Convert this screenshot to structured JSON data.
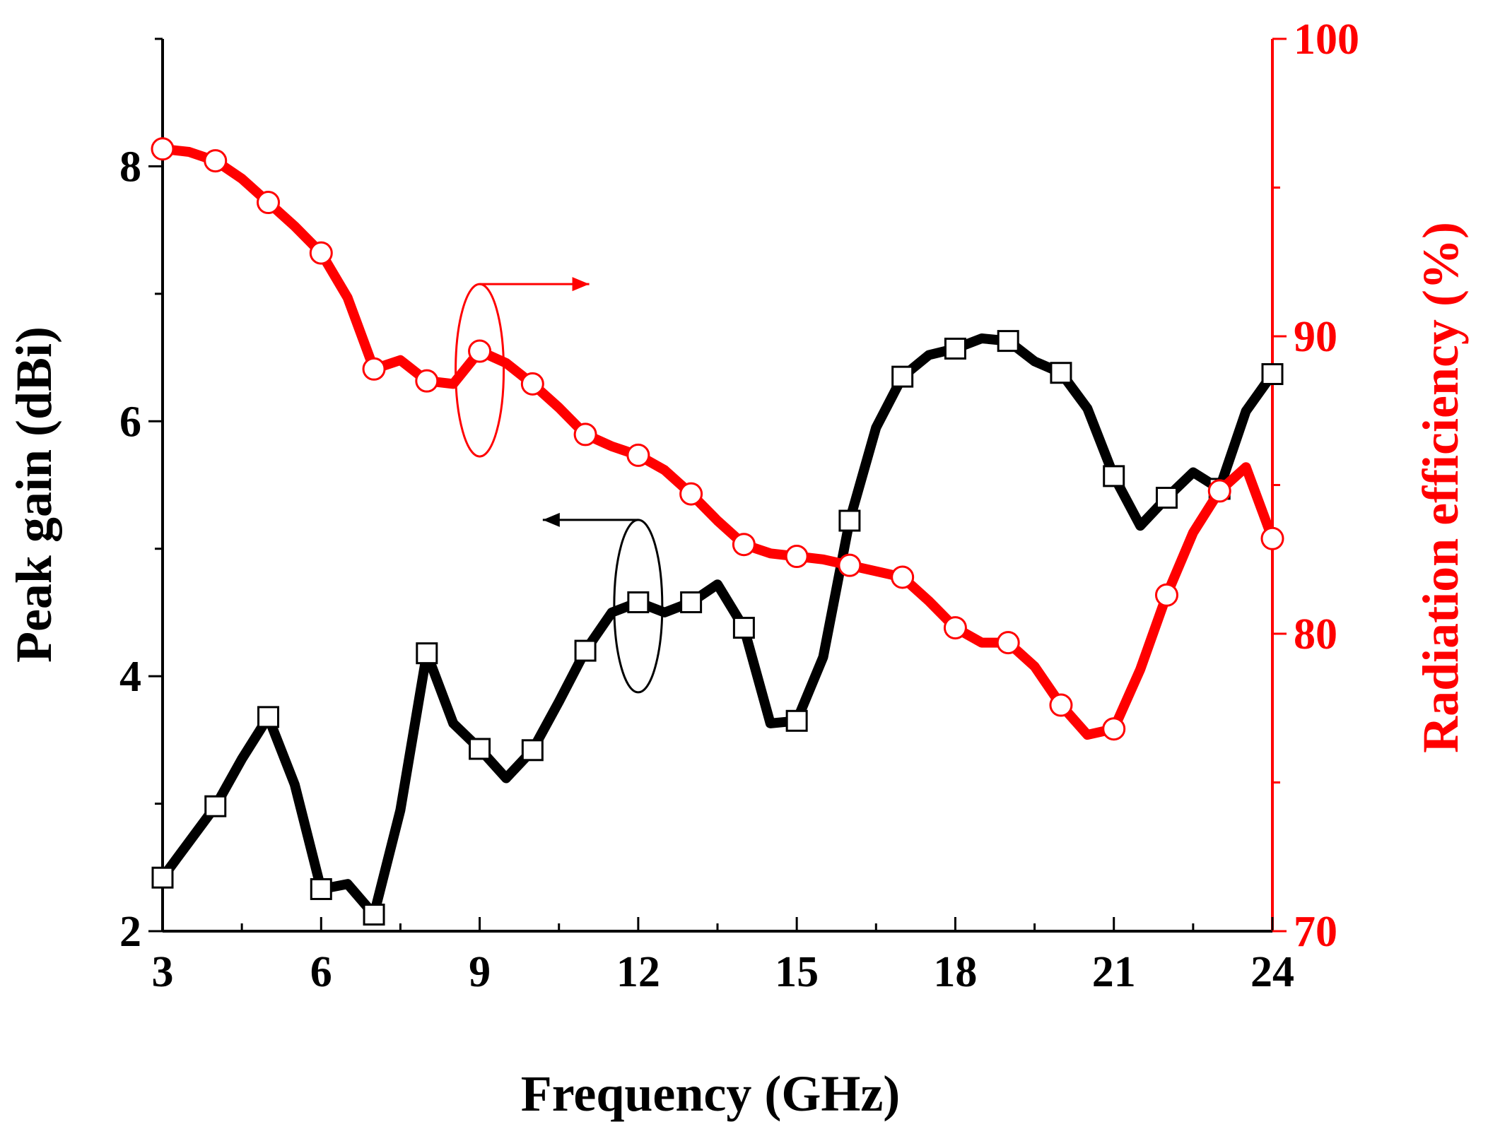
{
  "chart_data": {
    "type": "line",
    "xlabel": "Frequency (GHz)",
    "ylabel_left": "Peak gain (dBi)",
    "ylabel_right": "Radiation efficiency (%)",
    "xlim": [
      3,
      24
    ],
    "xticks": [
      3,
      6,
      9,
      12,
      15,
      18,
      21,
      24
    ],
    "ylim_left": [
      2,
      9
    ],
    "yticks_left": [
      2,
      4,
      6,
      8
    ],
    "ylim_right": [
      70,
      100
    ],
    "yticks_right": [
      70,
      80,
      90,
      100
    ],
    "colors": {
      "gain": "#000000",
      "efficiency": "#ff0000",
      "axis": "#000000",
      "right_axis": "#ff0000"
    },
    "series": [
      {
        "name": "Peak gain",
        "axis": "left",
        "marker": "square",
        "x": [
          3,
          3.5,
          4,
          4.5,
          5,
          5.5,
          6,
          6.5,
          7,
          7.5,
          8,
          8.5,
          9,
          9.5,
          10,
          10.5,
          11,
          11.5,
          12,
          12.5,
          13,
          13.5,
          14,
          14.5,
          15,
          15.5,
          16,
          16.5,
          17,
          17.5,
          18,
          18.5,
          19,
          19.5,
          20,
          20.5,
          21,
          21.5,
          22,
          22.5,
          23,
          23.5,
          24
        ],
        "values": [
          2.42,
          2.7,
          2.98,
          3.35,
          3.68,
          3.15,
          2.33,
          2.37,
          2.13,
          2.95,
          4.18,
          3.63,
          3.43,
          3.2,
          3.42,
          3.8,
          4.2,
          4.5,
          4.58,
          4.5,
          4.58,
          4.72,
          4.38,
          3.63,
          3.65,
          4.15,
          5.22,
          5.95,
          6.35,
          6.52,
          6.57,
          6.65,
          6.63,
          6.47,
          6.38,
          6.1,
          5.57,
          5.18,
          5.4,
          5.6,
          5.47,
          6.08,
          6.37
        ],
        "marker_x": [
          3,
          4,
          5,
          6,
          7,
          8,
          9,
          10,
          11,
          12,
          13,
          14,
          15,
          16,
          17,
          18,
          19,
          20,
          21,
          22,
          23,
          24
        ]
      },
      {
        "name": "Radiation efficiency",
        "axis": "right",
        "marker": "circle",
        "x": [
          3,
          3.5,
          4,
          4.5,
          5,
          5.5,
          6,
          6.5,
          7,
          7.5,
          8,
          8.5,
          9,
          9.5,
          10,
          10.5,
          11,
          11.5,
          12,
          12.5,
          13,
          13.5,
          14,
          14.5,
          15,
          15.5,
          16,
          16.5,
          17,
          17.5,
          18,
          18.5,
          19,
          19.5,
          20,
          20.5,
          21,
          21.5,
          22,
          22.5,
          23,
          23.5,
          24
        ],
        "values": [
          96.3,
          96.2,
          95.9,
          95.3,
          94.5,
          93.7,
          92.8,
          91.3,
          88.9,
          89.2,
          88.5,
          88.4,
          89.5,
          89.1,
          88.4,
          87.6,
          86.7,
          86.3,
          86.0,
          85.5,
          84.7,
          83.8,
          83.0,
          82.7,
          82.6,
          82.5,
          82.3,
          82.1,
          81.9,
          81.1,
          80.2,
          79.7,
          79.7,
          78.9,
          77.6,
          76.6,
          76.8,
          78.8,
          81.3,
          83.4,
          84.8,
          85.6,
          83.2
        ],
        "marker_x": [
          3,
          4,
          5,
          6,
          7,
          8,
          9,
          10,
          11,
          12,
          13,
          14,
          15,
          16,
          17,
          18,
          19,
          20,
          21,
          22,
          23,
          24
        ]
      }
    ],
    "annotations": [
      {
        "type": "ellipse-arrow",
        "series": "Radiation efficiency",
        "points_to": "right",
        "x": 9.0,
        "y": 6.4
      },
      {
        "type": "ellipse-arrow",
        "series": "Peak gain",
        "points_to": "left",
        "x": 12.0,
        "y": 4.55
      }
    ]
  }
}
